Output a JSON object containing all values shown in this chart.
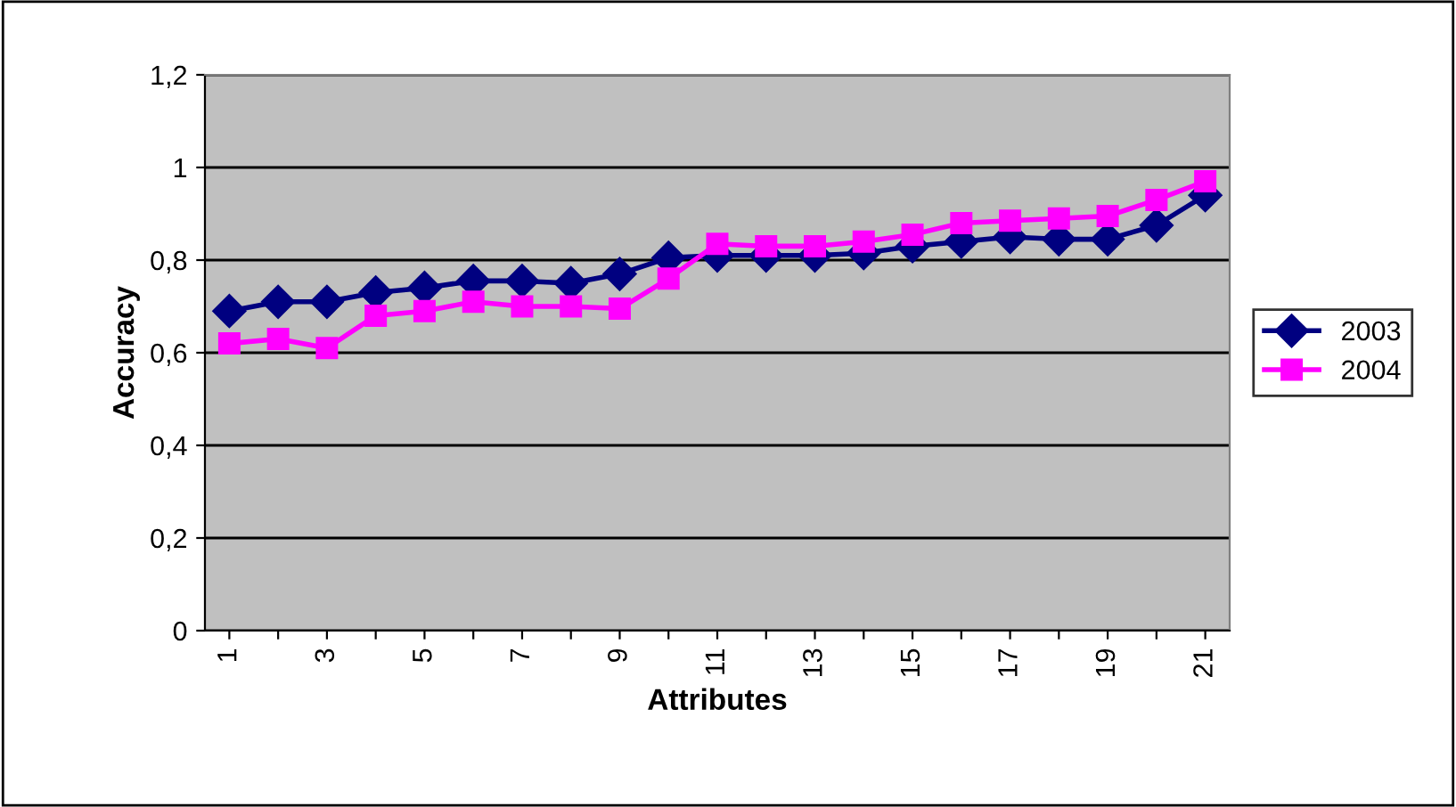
{
  "chart_data": {
    "type": "line",
    "xlabel": "Attributes",
    "ylabel": "Accuracy",
    "categories": [
      "1",
      null,
      "3",
      null,
      "5",
      null,
      "7",
      null,
      "9",
      null,
      "11",
      null,
      "13",
      null,
      "15",
      null,
      "17",
      null,
      "19",
      null,
      "21"
    ],
    "series": [
      {
        "name": "2003",
        "color": "#000080",
        "marker": "diamond",
        "values": [
          0.69,
          0.71,
          0.71,
          0.73,
          0.74,
          0.755,
          0.755,
          0.75,
          0.77,
          0.805,
          0.81,
          0.81,
          0.81,
          0.815,
          0.83,
          0.84,
          0.85,
          0.845,
          0.845,
          0.875,
          0.94
        ]
      },
      {
        "name": "2004",
        "color": "#ff00ff",
        "marker": "square",
        "values": [
          0.62,
          0.63,
          0.61,
          0.68,
          0.69,
          0.71,
          0.7,
          0.7,
          0.695,
          0.76,
          0.835,
          0.83,
          0.83,
          0.84,
          0.855,
          0.88,
          0.885,
          0.89,
          0.895,
          0.93,
          0.97
        ]
      }
    ],
    "ylim": [
      0,
      1.2
    ],
    "yticks": [
      0,
      {
        "value": 0.2,
        "label": "0,2"
      },
      {
        "value": 0.4,
        "label": "0,4"
      },
      {
        "value": 0.6,
        "label": "0,6"
      },
      {
        "value": 0.8,
        "label": "0,8"
      },
      1,
      {
        "value": 1.2,
        "label": "1,2"
      }
    ],
    "grid": "y",
    "legend": "right",
    "line_style": "solid"
  }
}
